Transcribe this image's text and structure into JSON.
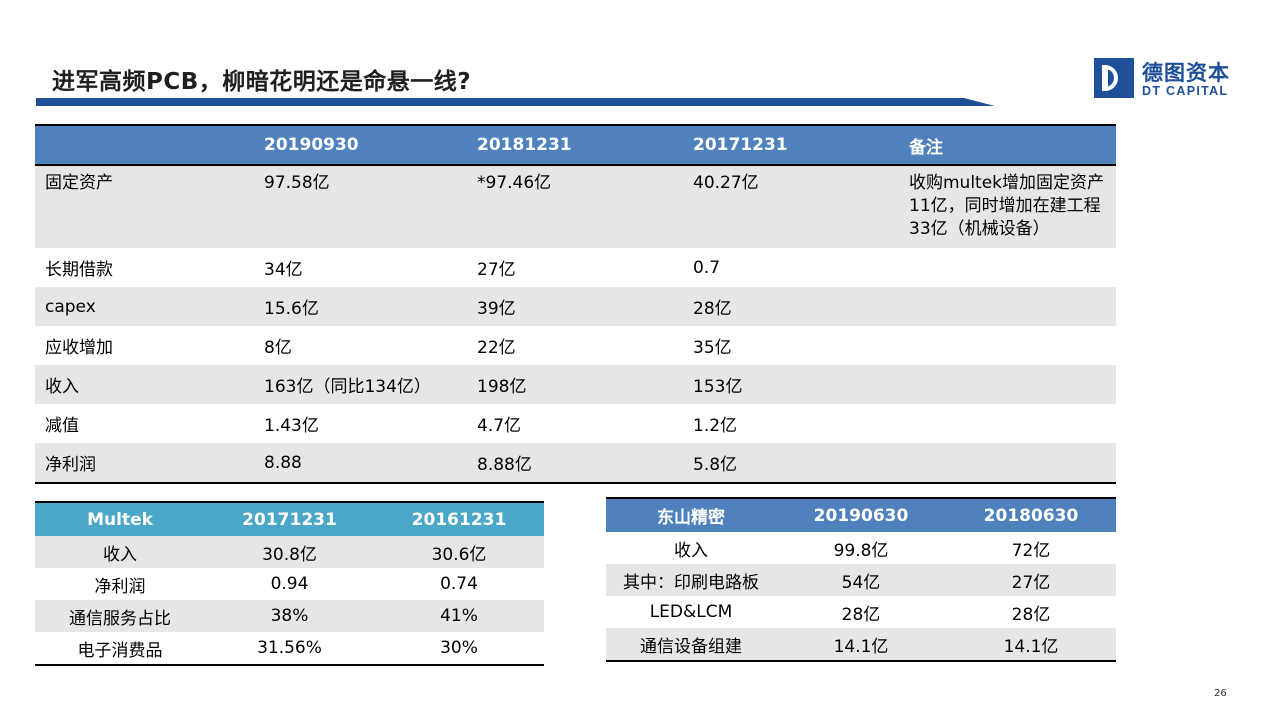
{
  "title": "进军高频PCB，柳暗花明还是命悬一线?",
  "logo": {
    "cn": "德图资本",
    "en": "DT CAPITAL"
  },
  "main_table": {
    "headers": [
      "",
      "20190930",
      "20181231",
      "20171231",
      "备注"
    ],
    "rows": [
      [
        "固定资产",
        "97.58亿",
        "*97.46亿",
        "40.27亿",
        "收购multek增加固定资产11亿，同时增加在建工程33亿（机械设备）"
      ],
      [
        "长期借款",
        "34亿",
        "27亿",
        "0.7",
        ""
      ],
      [
        "capex",
        "15.6亿",
        "39亿",
        "28亿",
        ""
      ],
      [
        "应收增加",
        "8亿",
        "22亿",
        "35亿",
        ""
      ],
      [
        "收入",
        "163亿（同比134亿）",
        "198亿",
        "153亿",
        ""
      ],
      [
        "减值",
        "1.43亿",
        "4.7亿",
        "1.2亿",
        ""
      ],
      [
        "净利润",
        "8.88",
        "8.88亿",
        "5.8亿",
        ""
      ]
    ]
  },
  "multek_table": {
    "headers": [
      "Multek",
      "20171231",
      "20161231"
    ],
    "rows": [
      [
        "收入",
        "30.8亿",
        "30.6亿"
      ],
      [
        "净利润",
        "0.94",
        "0.74"
      ],
      [
        "通信服务占比",
        "38%",
        "41%"
      ],
      [
        "电子消费品",
        "31.56%",
        "30%"
      ]
    ]
  },
  "dongshan_table": {
    "headers": [
      "东山精密",
      "20190630",
      "20180630"
    ],
    "rows": [
      [
        "收入",
        "99.8亿",
        "72亿"
      ],
      [
        "其中：印刷电路板",
        "54亿",
        "27亿"
      ],
      [
        "LED&LCM",
        "28亿",
        "28亿"
      ],
      [
        "通信设备组建",
        "14.1亿",
        "14.1亿"
      ]
    ]
  },
  "page_number": "26",
  "colors": {
    "header_blue": "#4f81bd",
    "header_teal": "#4ba7c8",
    "brand_blue": "#1e4f99",
    "row_shade": "#e6e6e6"
  }
}
